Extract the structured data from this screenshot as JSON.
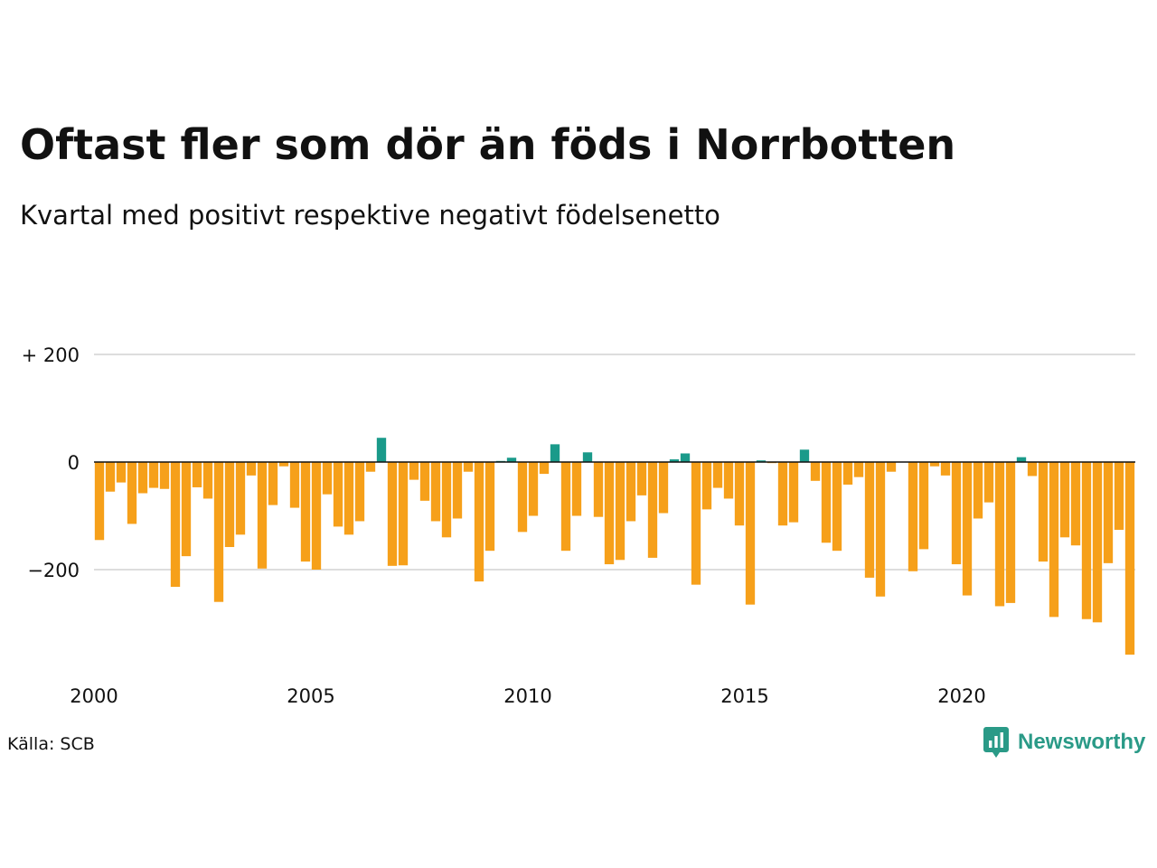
{
  "title": "Oftast fler som dör än föds i Norrbotten",
  "subtitle": "Kvartal med positivt respektive negativt födelsenetto",
  "source": "Källa: SCB",
  "brand": {
    "name": "Newsworthy",
    "icon": "newsworthy-logo-icon",
    "color": "#2a9a87"
  },
  "colors": {
    "positive": "#1a9a8a",
    "negative": "#f6a01a",
    "grid": "#dddddd",
    "zero_line": "#111111"
  },
  "chart_data": {
    "type": "bar",
    "x_start": "2000 Q1",
    "x_unit": "quarter",
    "xlabel": "",
    "ylabel": "",
    "ylim": [
      -360,
      200
    ],
    "yticks": [
      {
        "value": 200,
        "label": "+ 200"
      },
      {
        "value": 0,
        "label": "0"
      },
      {
        "value": -200,
        "label": "−200"
      }
    ],
    "xticks": [
      "2000",
      "2005",
      "2010",
      "2015",
      "2020"
    ],
    "grid": true,
    "values": [
      -145,
      -55,
      -38,
      -115,
      -58,
      -48,
      -50,
      -232,
      -175,
      -47,
      -68,
      -260,
      -158,
      -135,
      -25,
      -198,
      -80,
      -8,
      -85,
      -185,
      -200,
      -60,
      -120,
      -135,
      -110,
      -18,
      45,
      -193,
      -192,
      -33,
      -72,
      -110,
      -140,
      -105,
      -18,
      -222,
      -165,
      2,
      8,
      -130,
      -100,
      -22,
      33,
      -165,
      -100,
      18,
      -102,
      -190,
      -182,
      -110,
      -62,
      -178,
      -95,
      5,
      16,
      -228,
      -88,
      -48,
      -68,
      -118,
      -265,
      3,
      -2,
      -118,
      -112,
      23,
      -35,
      -150,
      -165,
      -42,
      -28,
      -215,
      -250,
      -18,
      0,
      -203,
      -162,
      -8,
      -25,
      -190,
      -248,
      -105,
      -75,
      -268,
      -262,
      9,
      -26,
      -185,
      -288,
      -140,
      -155,
      -292,
      -298,
      -188,
      -126,
      -358
    ]
  }
}
